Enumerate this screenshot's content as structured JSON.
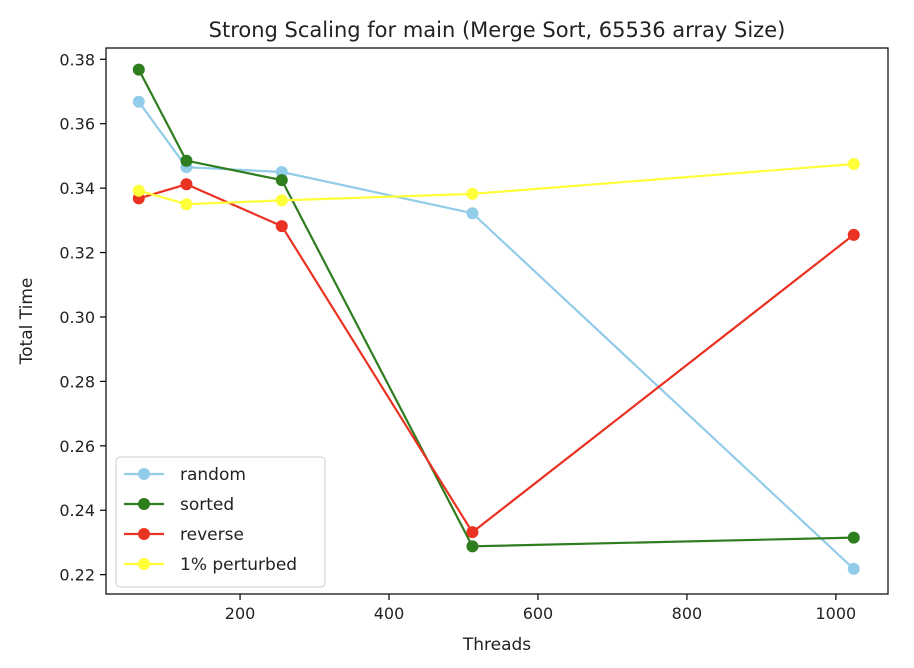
{
  "chart_data": {
    "type": "line",
    "title": "Strong Scaling for main (Merge Sort, 65536 array Size)",
    "xlabel": "Threads",
    "ylabel": "Total Time",
    "xlim": [
      20,
      1070
    ],
    "ylim": [
      0.214,
      0.3835
    ],
    "x": [
      64,
      128,
      256,
      512,
      1024
    ],
    "xticks": [
      200,
      400,
      600,
      800,
      1000
    ],
    "xtick_labels": [
      "200",
      "400",
      "600",
      "800",
      "1000"
    ],
    "yticks": [
      0.22,
      0.24,
      0.26,
      0.28,
      0.3,
      0.32,
      0.34,
      0.36,
      0.38
    ],
    "ytick_labels": [
      "0.22",
      "0.24",
      "0.26",
      "0.28",
      "0.30",
      "0.32",
      "0.34",
      "0.36",
      "0.38"
    ],
    "grid": false,
    "legend_position": "lower-left",
    "series": [
      {
        "name": "random",
        "color": "#92cce9",
        "values": [
          0.3668,
          0.3465,
          0.345,
          0.3322,
          0.2218
        ]
      },
      {
        "name": "sorted",
        "color": "#2e7d1f",
        "values": [
          0.3768,
          0.3485,
          0.3425,
          0.2288,
          0.2315
        ]
      },
      {
        "name": "reverse",
        "color": "#ea3222",
        "values": [
          0.3368,
          0.3412,
          0.3282,
          0.2332,
          0.3255
        ]
      },
      {
        "name": "1% perturbed",
        "color": "#ffff3a",
        "values": [
          0.3392,
          0.335,
          0.3362,
          0.3382,
          0.3475
        ]
      }
    ]
  }
}
